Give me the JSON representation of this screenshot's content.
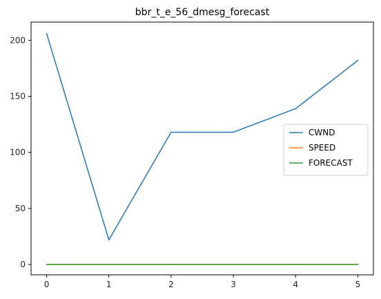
{
  "chart_data": {
    "type": "line",
    "title": "bbr_t_e_56_dmesg_forecast",
    "xlabel": "",
    "ylabel": "",
    "x": [
      0,
      1,
      2,
      3,
      4,
      5
    ],
    "xlim": [
      -0.25,
      5.25
    ],
    "ylim": [
      -9.2,
      216.2
    ],
    "xticks": [
      0,
      1,
      2,
      3,
      4,
      5
    ],
    "yticks": [
      0,
      50,
      100,
      150,
      200
    ],
    "grid": false,
    "legend_position": "center-right",
    "series": [
      {
        "name": "CWND",
        "color": "#1f77b4",
        "values": [
          206,
          22,
          118,
          118,
          139,
          182
        ]
      },
      {
        "name": "SPEED",
        "color": "#ff7f0e",
        "values": [
          0,
          0,
          0,
          0,
          0,
          0
        ]
      },
      {
        "name": "FORECAST",
        "color": "#2ca02c",
        "values": [
          0,
          0,
          0,
          0,
          0,
          0
        ]
      }
    ]
  }
}
